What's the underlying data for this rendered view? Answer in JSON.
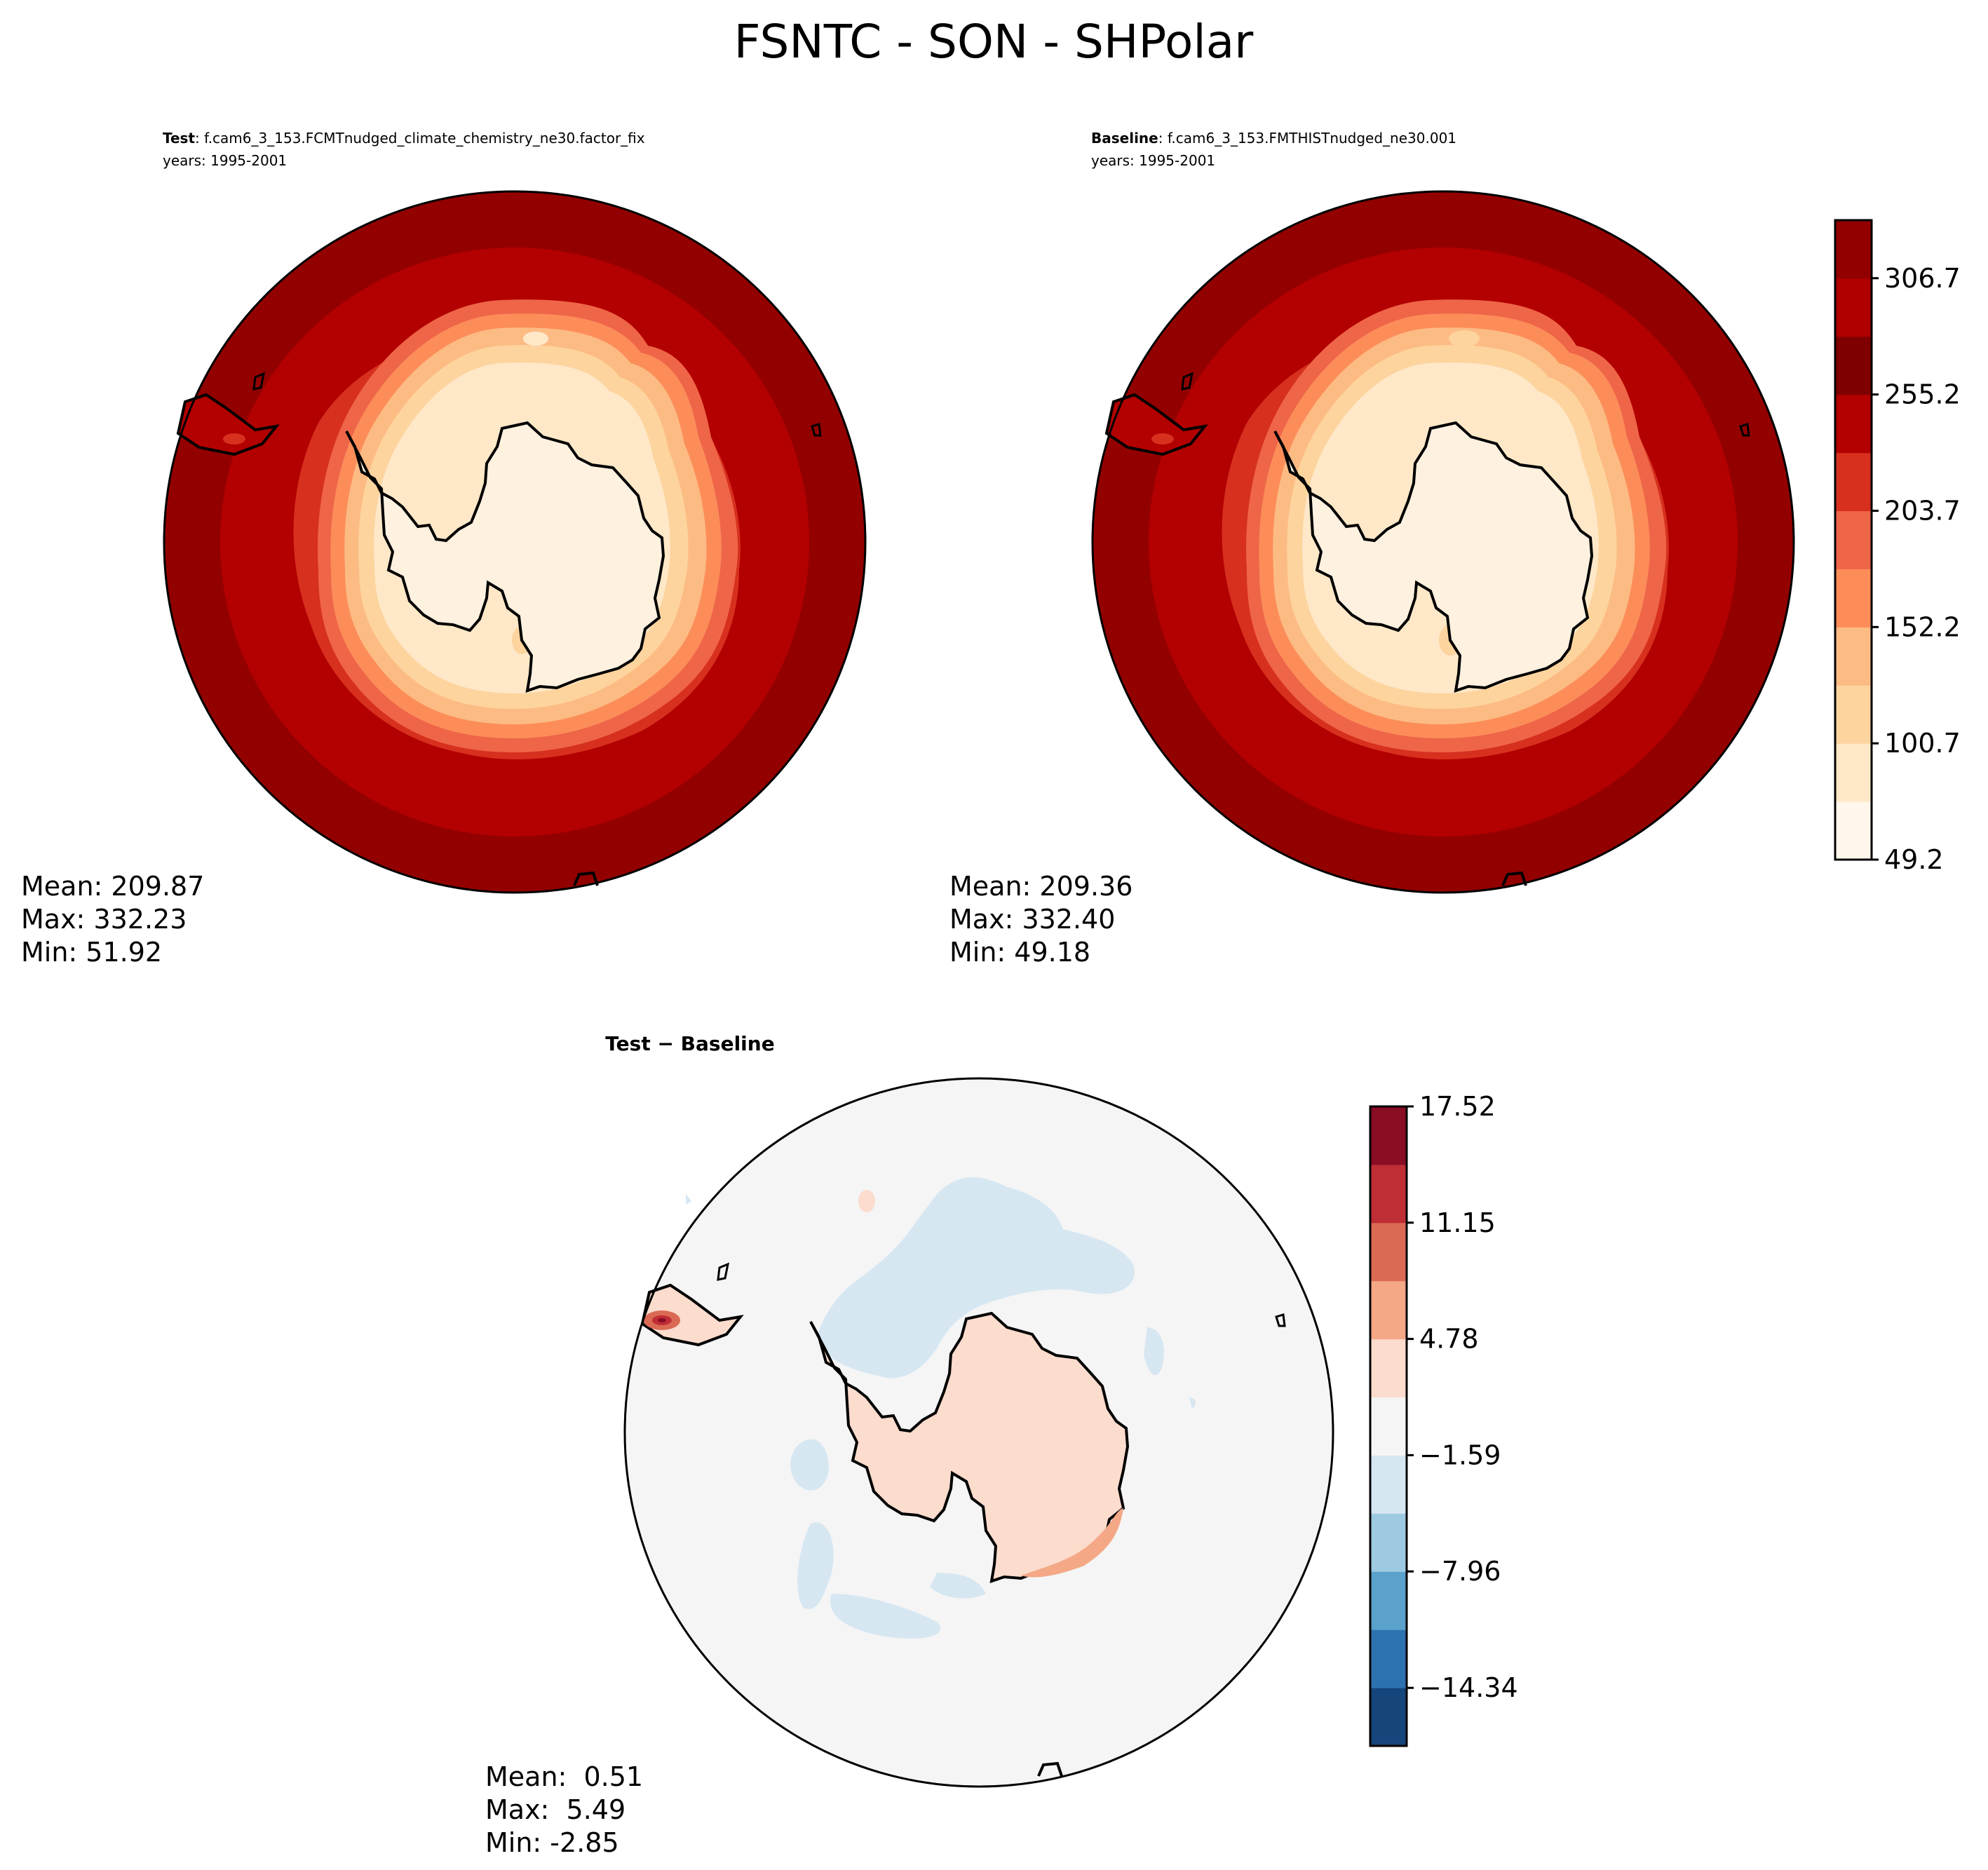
{
  "figure": {
    "title": "FSNTC - SON - SHPolar"
  },
  "panels": {
    "test": {
      "label_bold": "Test",
      "label_rest": ": f.cam6_3_153.FCMTnudged_climate_chemistry_ne30.factor_fix",
      "years": "years: 1995-2001",
      "stats": [
        "Mean: 209.87",
        "Max: 332.23",
        "Min: 51.92"
      ]
    },
    "baseline": {
      "label_bold": "Baseline",
      "label_rest": ": f.cam6_3_153.FMTHISTnudged_ne30.001",
      "years": "years: 1995-2001",
      "stats": [
        "Mean: 209.36",
        "Max: 332.40",
        "Min: 49.18"
      ]
    },
    "diff": {
      "label": "Test − Baseline",
      "stats": [
        "Mean:  0.51",
        "Max:  5.49",
        "Min: -2.85"
      ]
    }
  },
  "chart_data": [
    {
      "type": "heatmap",
      "name": "Test",
      "projection": "south-polar-stereographic",
      "mean": 209.87,
      "max": 332.23,
      "min": 51.92,
      "colormap": "OrRd"
    },
    {
      "type": "heatmap",
      "name": "Baseline",
      "projection": "south-polar-stereographic",
      "mean": 209.36,
      "max": 332.4,
      "min": 49.18,
      "colormap": "OrRd"
    },
    {
      "type": "heatmap",
      "name": "Test − Baseline",
      "projection": "south-polar-stereographic",
      "mean": 0.51,
      "max": 5.49,
      "min": -2.85,
      "colormap": "RdBu_r"
    }
  ],
  "colorbars": {
    "main": {
      "ticks": [
        "49.2",
        "100.7",
        "152.2",
        "203.7",
        "255.2",
        "306.7"
      ],
      "tick_values": [
        49.2,
        100.7,
        152.2,
        203.7,
        255.2,
        306.7
      ],
      "range": [
        49.2,
        332.4
      ],
      "colors": [
        "#fff7ec",
        "#fee8c8",
        "#fdd49e",
        "#fdbb84",
        "#fc8d59",
        "#ef6548",
        "#d7301f",
        "#b30000",
        "#7f0000",
        "#b00000",
        "#930000"
      ]
    },
    "diff": {
      "ticks": [
        "17.52",
        "11.15",
        "4.78",
        "−1.59",
        "−7.96",
        "−14.34"
      ],
      "tick_values": [
        17.52,
        11.15,
        4.78,
        -1.59,
        -7.96,
        -14.34
      ],
      "range": [
        -17.52,
        17.52
      ],
      "colors": [
        "#16457c",
        "#2d72b0",
        "#5aa1cc",
        "#9dcae1",
        "#d6e7f2",
        "#f5f5f5",
        "#fbdccd",
        "#f4a886",
        "#db6a55",
        "#bf2d35",
        "#880d25"
      ]
    }
  },
  "colors": {
    "land": "#fff1e0",
    "ocean_outer": "#930000",
    "diff_background": "#f5f5f5",
    "diff_land": "#fbdccd",
    "diff_blue": "#d6e7f2"
  }
}
